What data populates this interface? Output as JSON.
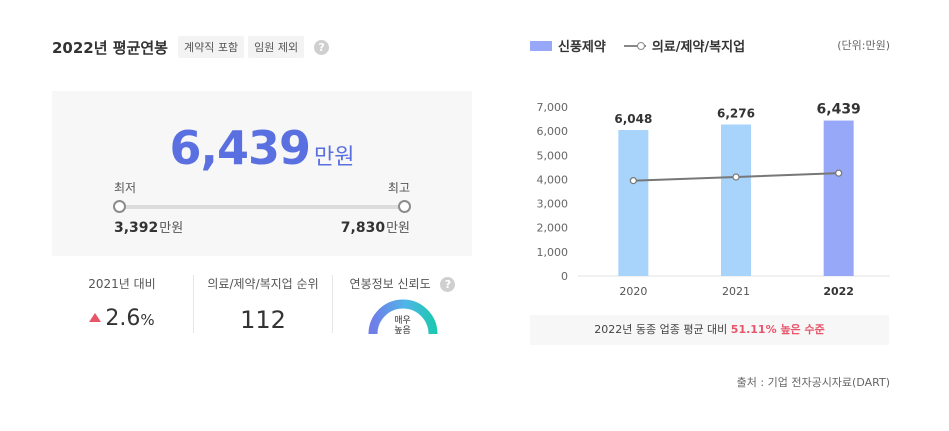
{
  "summary": {
    "title": "2022년 평균연봉",
    "tags": [
      "계약직 포함",
      "임원 제외"
    ],
    "help_icon": "?",
    "average_value": "6,439",
    "unit": "만원",
    "min_label": "최저",
    "max_label": "최고",
    "min_value": "3,392",
    "max_value": "7,830"
  },
  "stats": {
    "growth_label": "2021년 대비",
    "growth_value": "2.6",
    "growth_pct": "%",
    "rank_label": "의료/제약/복지업 순위",
    "rank_value": "112",
    "reliability_label": "연봉정보 신뢰도",
    "reliability_line1": "매우",
    "reliability_line2": "높음"
  },
  "legend": {
    "bar": "신풍제약",
    "line": "의료/제약/복지업"
  },
  "unit_note": "(단위:만원)",
  "comparison": {
    "prefix": "2022년 동종 업종 평균 대비",
    "highlight": "51.11% 높은 수준"
  },
  "source": "출처 : 기업 전자공시자료(DART)",
  "colors": {
    "bar": "#a8d4fb",
    "bar_highlight": "#98a8f8",
    "line": "#777777",
    "accent": "#5a6fe0",
    "up": "#e8556b"
  },
  "chart_data": {
    "type": "bar",
    "categories": [
      "2020",
      "2021",
      "2022"
    ],
    "series": [
      {
        "name": "신풍제약",
        "values": [
          6048,
          6276,
          6439
        ],
        "labels": [
          "6,048",
          "6,276",
          "6,439"
        ]
      },
      {
        "name": "의료/제약/복지업",
        "values": [
          3950,
          4100,
          4260
        ]
      }
    ],
    "yticks": [
      "0",
      "1,000",
      "2,000",
      "3,000",
      "4,000",
      "5,000",
      "6,000",
      "7,000"
    ],
    "ylim": [
      0,
      7000
    ],
    "highlight_category": "2022"
  }
}
